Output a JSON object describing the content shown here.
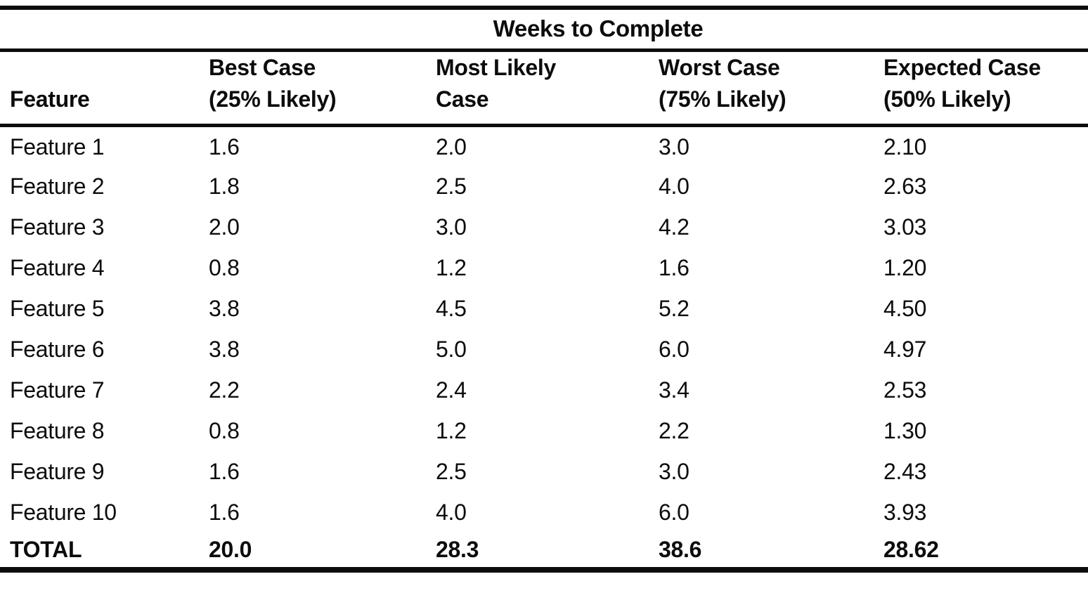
{
  "table": {
    "span_header": "Weeks to Complete",
    "column_headers": [
      {
        "line1": "Feature",
        "line2": ""
      },
      {
        "line1": "Best Case",
        "line2": "(25% Likely)"
      },
      {
        "line1": "Most Likely",
        "line2": "Case"
      },
      {
        "line1": "Worst Case",
        "line2": "(75% Likely)"
      },
      {
        "line1": "Expected Case",
        "line2": "(50% Likely)"
      }
    ],
    "rows": [
      {
        "feature": "Feature 1",
        "best": "1.6",
        "most_likely": "2.0",
        "worst": "3.0",
        "expected": "2.10"
      },
      {
        "feature": "Feature 2",
        "best": "1.8",
        "most_likely": "2.5",
        "worst": "4.0",
        "expected": "2.63"
      },
      {
        "feature": "Feature 3",
        "best": "2.0",
        "most_likely": "3.0",
        "worst": "4.2",
        "expected": "3.03"
      },
      {
        "feature": "Feature 4",
        "best": "0.8",
        "most_likely": "1.2",
        "worst": "1.6",
        "expected": "1.20"
      },
      {
        "feature": "Feature 5",
        "best": "3.8",
        "most_likely": "4.5",
        "worst": "5.2",
        "expected": "4.50"
      },
      {
        "feature": "Feature 6",
        "best": "3.8",
        "most_likely": "5.0",
        "worst": "6.0",
        "expected": "4.97"
      },
      {
        "feature": "Feature 7",
        "best": "2.2",
        "most_likely": "2.4",
        "worst": "3.4",
        "expected": "2.53"
      },
      {
        "feature": "Feature 8",
        "best": "0.8",
        "most_likely": "1.2",
        "worst": "2.2",
        "expected": "1.30"
      },
      {
        "feature": "Feature 9",
        "best": "1.6",
        "most_likely": "2.5",
        "worst": "3.0",
        "expected": "2.43"
      },
      {
        "feature": "Feature 10",
        "best": "1.6",
        "most_likely": "4.0",
        "worst": "6.0",
        "expected": "3.93"
      }
    ],
    "total_row": {
      "feature": "TOTAL",
      "best": "20.0",
      "most_likely": "28.3",
      "worst": "38.6",
      "expected": "28.62"
    }
  },
  "colors": {
    "ink": "#0c0c0c",
    "paper": "#ffffff"
  },
  "chart_data": {
    "type": "table",
    "title": "Weeks to Complete",
    "columns": [
      "Feature",
      "Best Case (25% Likely)",
      "Most Likely Case",
      "Worst Case (75% Likely)",
      "Expected Case (50% Likely)"
    ],
    "rows": [
      [
        "Feature 1",
        1.6,
        2.0,
        3.0,
        2.1
      ],
      [
        "Feature 2",
        1.8,
        2.5,
        4.0,
        2.63
      ],
      [
        "Feature 3",
        2.0,
        3.0,
        4.2,
        3.03
      ],
      [
        "Feature 4",
        0.8,
        1.2,
        1.6,
        1.2
      ],
      [
        "Feature 5",
        3.8,
        4.5,
        5.2,
        4.5
      ],
      [
        "Feature 6",
        3.8,
        5.0,
        6.0,
        4.97
      ],
      [
        "Feature 7",
        2.2,
        2.4,
        3.4,
        2.53
      ],
      [
        "Feature 8",
        0.8,
        1.2,
        2.2,
        1.3
      ],
      [
        "Feature 9",
        1.6,
        2.5,
        3.0,
        2.43
      ],
      [
        "Feature 10",
        1.6,
        4.0,
        6.0,
        3.93
      ],
      [
        "TOTAL",
        20.0,
        28.3,
        38.6,
        28.62
      ]
    ]
  }
}
